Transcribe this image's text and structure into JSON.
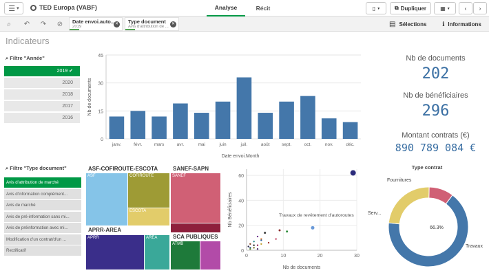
{
  "app": {
    "title": "TED Europa (VABF)"
  },
  "tabs": [
    {
      "label": "Analyse"
    },
    {
      "label": "Récit"
    }
  ],
  "toolbar": {
    "duplicate_label": "Dupliquer"
  },
  "selections": {
    "chips": [
      {
        "title": "Date envoi.auto...",
        "value": "2019"
      },
      {
        "title": "Type document",
        "value": "Avis d'attribution de ..."
      }
    ],
    "selections_label": "Sélections",
    "info_label": "Informations"
  },
  "sheet": {
    "title": "Indicateurs"
  },
  "filter_year": {
    "title": "Filtre \"Année\"",
    "items": [
      {
        "label": "2019",
        "selected": true
      },
      {
        "label": "2020",
        "selected": false
      },
      {
        "label": "2018",
        "selected": false
      },
      {
        "label": "2017",
        "selected": false
      },
      {
        "label": "2016",
        "selected": false
      }
    ]
  },
  "filter_doc": {
    "title": "Filtre \"Type document\"",
    "items": [
      {
        "label": "Avis d'attribution de marché",
        "selected": true
      },
      {
        "label": "Avis d'information complément...",
        "selected": false
      },
      {
        "label": "Avis de marché",
        "selected": false
      },
      {
        "label": "Avis de pré-information sans mi...",
        "selected": false
      },
      {
        "label": "Avis de préinformation avec mi...",
        "selected": false
      },
      {
        "label": "Modification d'un contrat/d'un ...",
        "selected": false
      },
      {
        "label": "Rectificatif",
        "selected": false
      }
    ]
  },
  "kpis": {
    "docs_label": "Nb de documents",
    "docs_value": "202",
    "benef_label": "Nb de bénéficiaires",
    "benef_value": "296",
    "amount_label": "Montant contrats (€)",
    "amount_value": "890 789 084 €"
  },
  "chart_data": [
    {
      "type": "bar",
      "categories": [
        "janv.",
        "févr.",
        "mars",
        "avr.",
        "mai",
        "juin",
        "juil.",
        "août",
        "sept.",
        "oct.",
        "nov.",
        "déc."
      ],
      "values": [
        12,
        15,
        12,
        19,
        14,
        20,
        33,
        14,
        20,
        23,
        11,
        9
      ],
      "xlabel": "Date envoi.Month",
      "ylabel": "Nb de documents",
      "yticks": [
        0,
        15,
        30,
        45
      ],
      "ylim": [
        0,
        45
      ],
      "color": "#4477aa"
    },
    {
      "type": "treemap",
      "groups": [
        {
          "name": "ASF-COFIROUTE-ESCOTA",
          "items": [
            {
              "name": "ASF",
              "color": "#85c4e8"
            },
            {
              "name": "COFIROUTE",
              "color": "#9e9b35"
            },
            {
              "name": "ESCOTA",
              "color": "#e2cc6a"
            }
          ]
        },
        {
          "name": "SANEF-SAPN",
          "items": [
            {
              "name": "SANEF",
              "color": "#d06075"
            },
            {
              "name": "",
              "color": "#8e1f3c"
            }
          ]
        },
        {
          "name": "APRR-AREA",
          "items": [
            {
              "name": "APRR",
              "color": "#3a2e8a"
            },
            {
              "name": "AREA",
              "color": "#3aa899"
            }
          ]
        },
        {
          "name": "SCA PUBLIQUES",
          "items": [
            {
              "name": "ATMB",
              "color": "#1e7a3a"
            },
            {
              "name": "",
              "color": "#b24ba8"
            }
          ]
        }
      ]
    },
    {
      "type": "scatter",
      "xlabel": "Nb de documents",
      "ylabel": "Nb Bénéficiaires",
      "xticks": [
        0,
        10,
        20,
        30
      ],
      "yticks": [
        0,
        20,
        40,
        60
      ],
      "xlim": [
        0,
        30
      ],
      "ylim": [
        0,
        65
      ],
      "annotation": "Travaux de revêtement d'autoroutes",
      "points": [
        {
          "x": 29,
          "y": 62,
          "color": "#2a2a7a",
          "r": 4
        },
        {
          "x": 18,
          "y": 18,
          "color": "#6a9ad8",
          "r": 2.5
        },
        {
          "x": 11,
          "y": 15,
          "color": "#2e8b3a",
          "r": 1.5
        },
        {
          "x": 9,
          "y": 16,
          "color": "#8a2a2a",
          "r": 1.5
        },
        {
          "x": 8,
          "y": 9,
          "color": "#c04060",
          "r": 1.2
        },
        {
          "x": 5,
          "y": 14,
          "color": "#3a3a3a",
          "r": 1.5
        },
        {
          "x": 4,
          "y": 9,
          "color": "#e07a2a",
          "r": 1.2
        },
        {
          "x": 4,
          "y": 8,
          "color": "#2e5e9a",
          "r": 1.2
        },
        {
          "x": 4,
          "y": 5,
          "color": "#c0a030",
          "r": 1.2
        },
        {
          "x": 3,
          "y": 11,
          "color": "#6a2e8a",
          "r": 1.2
        },
        {
          "x": 3,
          "y": 4,
          "color": "#9a2a5e",
          "r": 1.2
        },
        {
          "x": 2,
          "y": 7,
          "color": "#2a8a8a",
          "r": 1.2
        },
        {
          "x": 2,
          "y": 4,
          "color": "#2a2a2a",
          "r": 1.2
        },
        {
          "x": 2,
          "y": 2,
          "color": "#7a7a2a",
          "r": 1.2
        },
        {
          "x": 1,
          "y": 5,
          "color": "#8a4a2a",
          "r": 1.2
        },
        {
          "x": 1,
          "y": 2,
          "color": "#2a4a8a",
          "r": 1.2
        },
        {
          "x": 1,
          "y": 1,
          "color": "#5a8a2a",
          "r": 1.2
        },
        {
          "x": 0.5,
          "y": 3,
          "color": "#2a2a4a",
          "r": 1.2
        },
        {
          "x": 6,
          "y": 6,
          "color": "#a03030",
          "r": 1.2
        },
        {
          "x": 3,
          "y": 1,
          "color": "#4a2a6a",
          "r": 1.2
        }
      ]
    },
    {
      "type": "pie",
      "title": "Type contrat",
      "labels": [
        "Travaux",
        "Services",
        "Fournitures"
      ],
      "display_labels": [
        "Travaux",
        "Serv...",
        "Fournitures"
      ],
      "values": [
        66.3,
        23.7,
        10.0
      ],
      "colors": [
        "#4477aa",
        "#e2cc6a",
        "#d06075"
      ],
      "center_label": "66.3%"
    }
  ]
}
